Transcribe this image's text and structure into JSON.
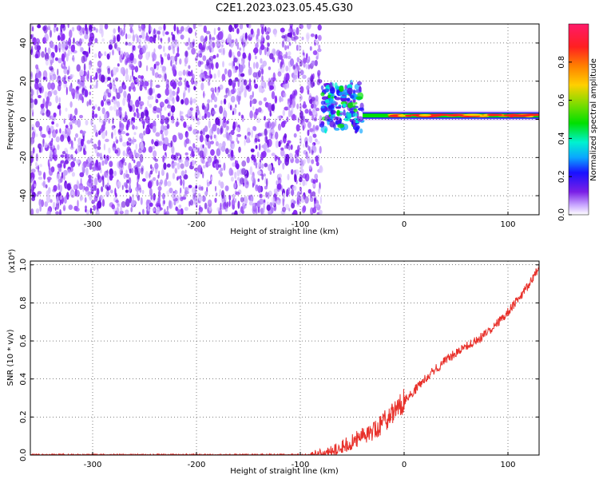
{
  "title": "C2E1.2023.023.05.45.G30",
  "chart_data": [
    {
      "type": "heatmap",
      "xlabel": "Height of straight line (km)",
      "ylabel": "Frequency (Hz)",
      "xlim": [
        -360,
        130
      ],
      "ylim": [
        -50,
        50
      ],
      "xticks": [
        "-300",
        "-200",
        "-100",
        "0",
        "100"
      ],
      "yticks": [
        "-40",
        "-20",
        "0",
        "20",
        "40"
      ],
      "xtick_values": [
        -300,
        -200,
        -100,
        0,
        100
      ],
      "ytick_values": [
        -40,
        -20,
        0,
        20,
        40
      ],
      "colorbar": {
        "label": "Normalized spectral amplitude",
        "range": [
          0,
          1
        ],
        "ticks": [
          "0.0",
          "0.2",
          "0.4",
          "0.6",
          "0.8"
        ],
        "tick_values": [
          0.0,
          0.2,
          0.4,
          0.6,
          0.8
        ]
      },
      "noise_region_x": [
        -360,
        -80
      ],
      "transition_region_x": [
        -80,
        -40
      ],
      "signal_line_x": [
        -40,
        130
      ],
      "signal_line_frequency": 2,
      "grid": true
    },
    {
      "type": "line",
      "xlabel": "Height of straight line (km)",
      "ylabel": "SNR (10 * v/v)",
      "yscale_label": "(x10⁴)",
      "xlim": [
        -360,
        130
      ],
      "ylim": [
        0,
        1.02
      ],
      "xticks": [
        "-300",
        "-200",
        "-100",
        "0",
        "100"
      ],
      "yticks": [
        "0.0",
        "0.2",
        "0.4",
        "0.6",
        "0.8",
        "1.0"
      ],
      "xtick_values": [
        -300,
        -200,
        -100,
        0,
        100
      ],
      "ytick_values": [
        0.0,
        0.2,
        0.4,
        0.6,
        0.8,
        1.0
      ],
      "series_color": "#e8302a",
      "x": [
        -360,
        -250,
        -150,
        -90,
        -70,
        -50,
        -40,
        -30,
        -20,
        -10,
        0,
        20,
        40,
        60,
        80,
        100,
        120,
        130
      ],
      "y": [
        0.0,
        0.0,
        0.0,
        0.0,
        0.02,
        0.07,
        0.1,
        0.13,
        0.17,
        0.23,
        0.28,
        0.4,
        0.5,
        0.57,
        0.64,
        0.75,
        0.89,
        0.99
      ],
      "grid": true
    }
  ]
}
